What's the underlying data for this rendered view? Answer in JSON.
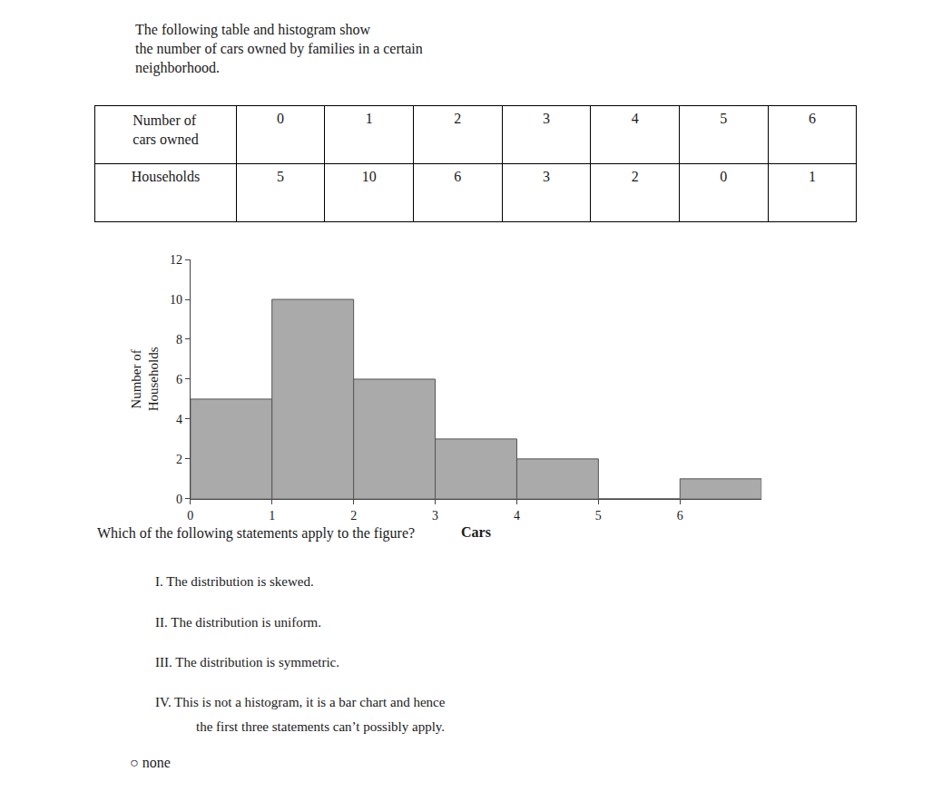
{
  "chart_data": {
    "type": "histogram",
    "bins": [
      0,
      1,
      2,
      3,
      4,
      5,
      6,
      7
    ],
    "values": [
      5,
      10,
      6,
      3,
      2,
      0,
      1
    ],
    "color": "#aaaaaa",
    "xlabel": "Cars",
    "ylabel": "Number of\nHouseholds",
    "xlim": [
      0,
      7
    ],
    "xticks": [
      0,
      1,
      2,
      3,
      4,
      5,
      6
    ],
    "ylim": [
      0,
      12
    ],
    "yticks": [
      0,
      2,
      4,
      6,
      8,
      10,
      12
    ],
    "grid": false,
    "table": {
      "header": [
        "Number of\ncars owned",
        "0",
        "1",
        "2",
        "3",
        "4",
        "5",
        "6"
      ],
      "rows": [
        [
          "Households",
          "5",
          "10",
          "6",
          "3",
          "2",
          "0",
          "1"
        ]
      ]
    },
    "annotations": [
      "The following table and histogram show\nthe number of cars owned by families in a certain\nneighborhood.",
      "Which of the following statements apply to the figure?",
      "I. The distribution is skewed.",
      "II. The distribution is uniform.",
      "III. The distribution is symmetric.",
      "IV. This is not a histogram, it is a bar chart and hence",
      "the first three statements can’t possibly apply.",
      "○ none"
    ]
  }
}
